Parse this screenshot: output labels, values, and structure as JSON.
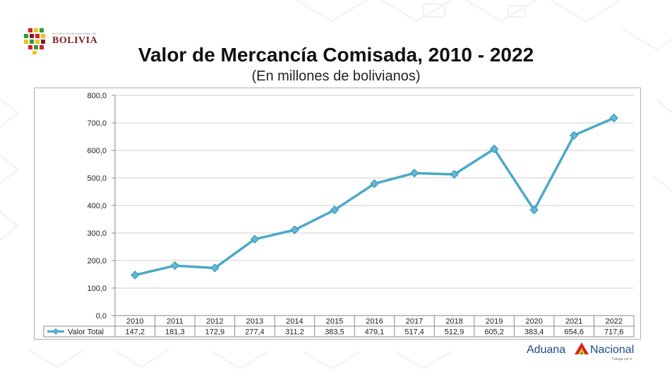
{
  "header": {
    "logo_small_text": "ESTADO PLURINACIONAL DE",
    "logo_text": "BOLIVIA"
  },
  "title": "Valor de Mercancía Comisada, 2010 - 2022",
  "subtitle": "(En millones de bolivianos)",
  "brand": {
    "name_left": "Aduana",
    "name_right": "Nacional",
    "tagline": "Trabaja por ti"
  },
  "colors": {
    "series": "#4aa9c8",
    "marker": "#5fb8d6",
    "brand_blue": "#1b4a8c",
    "brand_red": "#d6212b",
    "brand_green": "#2f9a3a",
    "brand_yellow": "#f2c21a"
  },
  "chart_data": {
    "type": "line",
    "title": "Valor de Mercancía Comisada, 2010 - 2022",
    "subtitle": "(En millones de bolivianos)",
    "categories": [
      "2010",
      "2011",
      "2012",
      "2013",
      "2014",
      "2015",
      "2016",
      "2017",
      "2018",
      "2019",
      "2020",
      "2021",
      "2022"
    ],
    "series": [
      {
        "name": "Valor Total",
        "values": [
          147.2,
          181.3,
          172.9,
          277.4,
          311.2,
          383.5,
          479.1,
          517.4,
          512.9,
          605.2,
          383.4,
          654.6,
          717.6
        ],
        "labels": [
          "147,2",
          "181,3",
          "172,9",
          "277,4",
          "311,2",
          "383,5",
          "479,1",
          "517,4",
          "512,9",
          "605,2",
          "383,4",
          "654,6",
          "717,6"
        ]
      }
    ],
    "ylim": [
      0,
      800
    ],
    "yticks": [
      "0,0",
      "100,0",
      "200,0",
      "300,0",
      "400,0",
      "500,0",
      "600,0",
      "700,0",
      "800,0"
    ],
    "grid": true,
    "data_table": true,
    "legend": "in data table"
  }
}
